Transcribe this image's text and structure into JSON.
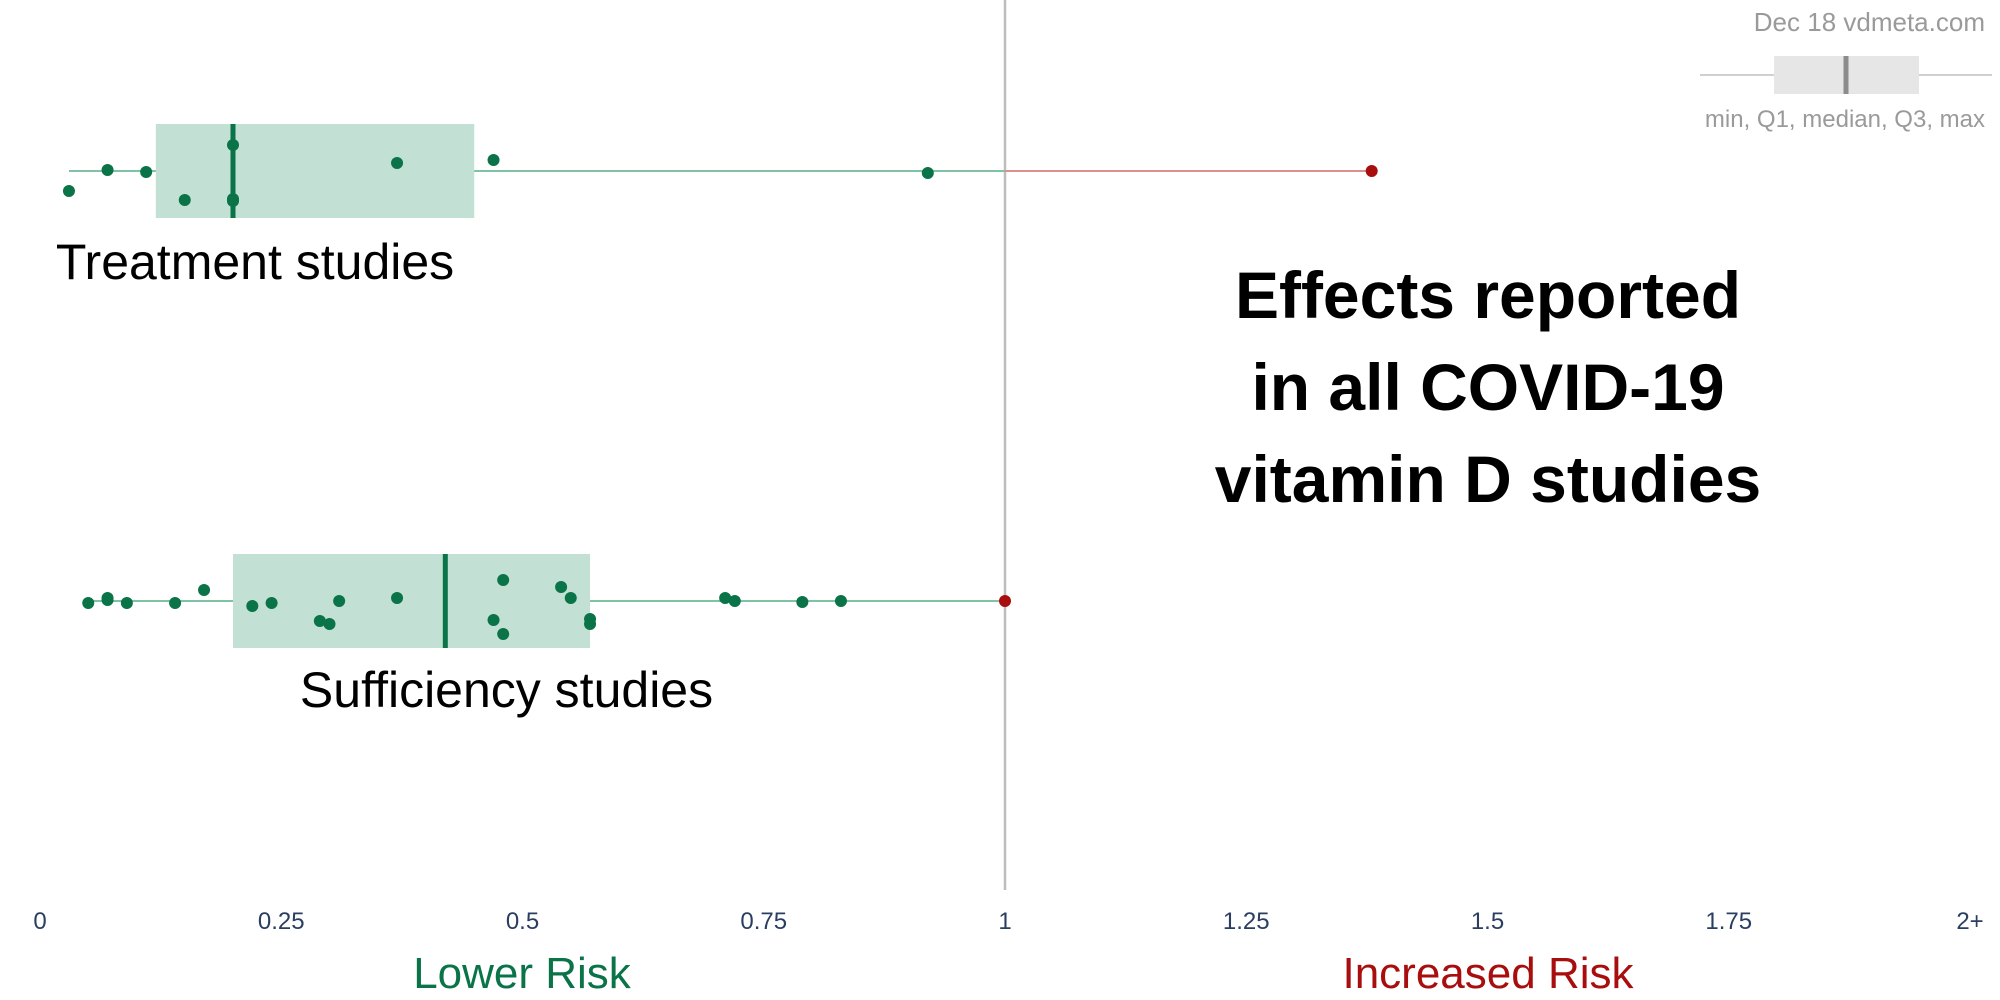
{
  "watermark": "Dec 18 vdmeta.com",
  "legend": {
    "caption": "min, Q1, median, Q3, max"
  },
  "title_lines": [
    "Effects reported",
    "in all COVID-19",
    "vitamin D studies"
  ],
  "risk_labels": {
    "lower": "Lower Risk",
    "increased": "Increased Risk"
  },
  "colors": {
    "green": "#0a7348",
    "box_fill": "#c3e0d4",
    "whisker_green": "#7fc3a6",
    "red": "#a80e0e",
    "whisker_red": "#df8e8e",
    "reference_line": "#bdbdbd",
    "axis_text": "#2a3f5f"
  },
  "chart_data": {
    "type": "box",
    "orientation": "horizontal",
    "xlim": [
      0,
      2
    ],
    "x_ticks": [
      {
        "value": 0,
        "label": "0"
      },
      {
        "value": 0.25,
        "label": "0.25"
      },
      {
        "value": 0.5,
        "label": "0.5"
      },
      {
        "value": 0.75,
        "label": "0.75"
      },
      {
        "value": 1,
        "label": "1"
      },
      {
        "value": 1.25,
        "label": "1.25"
      },
      {
        "value": 1.5,
        "label": "1.5"
      },
      {
        "value": 1.75,
        "label": "1.75"
      },
      {
        "value": 2,
        "label": "2+"
      }
    ],
    "reference_value": 1,
    "grid": false,
    "legend_position": "top-right",
    "series": [
      {
        "name": "Treatment studies",
        "min": 0.03,
        "q1": 0.12,
        "median": 0.2,
        "q3": 0.45,
        "max": 1.38,
        "points": [
          0.03,
          0.07,
          0.11,
          0.15,
          0.2,
          0.2,
          0.2,
          0.37,
          0.47,
          0.92,
          1.38
        ]
      },
      {
        "name": "Sufficiency studies",
        "min": 0.05,
        "q1": 0.2,
        "median": 0.42,
        "q3": 0.57,
        "max": 1.0,
        "points": [
          0.05,
          0.07,
          0.07,
          0.09,
          0.14,
          0.17,
          0.22,
          0.24,
          0.29,
          0.3,
          0.31,
          0.37,
          0.47,
          0.48,
          0.48,
          0.54,
          0.55,
          0.57,
          0.57,
          0.71,
          0.72,
          0.79,
          0.83,
          1.0
        ]
      }
    ]
  }
}
